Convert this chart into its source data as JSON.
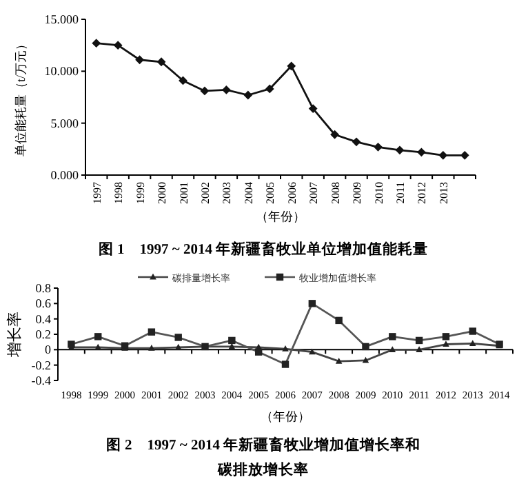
{
  "chart_data": [
    {
      "type": "line",
      "title": "图 1　1997 ~ 2014 年新疆畜牧业单位增加值能耗量",
      "xlabel": "（年份）",
      "ylabel": "单位能耗量（t/万元）",
      "categories": [
        "1997",
        "1998",
        "1999",
        "2000",
        "2001",
        "2002",
        "2003",
        "2004",
        "2005",
        "2006",
        "2007",
        "2008",
        "2009",
        "2010",
        "2011",
        "2012",
        "2013",
        null
      ],
      "series": [
        {
          "color": "#111111",
          "marker": "diamond",
          "values": [
            12.7,
            12.5,
            11.1,
            10.9,
            9.1,
            8.1,
            8.2,
            7.7,
            8.3,
            10.5,
            6.4,
            3.9,
            3.2,
            2.7,
            2.4,
            2.2,
            1.9,
            1.9
          ]
        }
      ],
      "ylim": [
        0,
        15
      ],
      "yticks": [
        {
          "value": 0,
          "label": "0.000"
        },
        {
          "value": 5,
          "label": "5.000"
        },
        {
          "value": 10,
          "label": "10.000"
        },
        {
          "value": 15,
          "label": "15.000"
        }
      ]
    },
    {
      "type": "line",
      "title": "图 2　1997 ~ 2014 年新疆畜牧业增加值增长率和碳排放增长率",
      "xlabel": "（年份）",
      "ylabel": "增长率",
      "categories": [
        "1998",
        "1999",
        "2000",
        "2001",
        "2002",
        "2003",
        "2004",
        "2005",
        "2006",
        "2007",
        "2008",
        "2009",
        "2010",
        "2011",
        "2012",
        "2013",
        "2014"
      ],
      "series": [
        {
          "name": "碳排量增长率",
          "color": "#444444",
          "marker": "triangle",
          "values": [
            0.03,
            0.03,
            0.02,
            0.02,
            0.03,
            0.04,
            0.04,
            0.03,
            0.01,
            -0.03,
            -0.15,
            -0.14,
            0,
            0,
            0.07,
            0.08,
            0.05
          ]
        },
        {
          "name": "牧业增加值增长率",
          "color": "#555555",
          "marker": "square",
          "values": [
            0.07,
            0.17,
            0.05,
            0.23,
            0.16,
            0.04,
            0.12,
            -0.03,
            -0.19,
            0.6,
            0.38,
            0.04,
            0.17,
            0.12,
            0.17,
            0.24,
            0.07
          ]
        }
      ],
      "ylim": [
        -0.4,
        0.8
      ],
      "yticks": [
        -0.4,
        -0.2,
        0,
        0.2,
        0.4,
        0.6,
        0.8
      ],
      "legend": "top"
    }
  ]
}
